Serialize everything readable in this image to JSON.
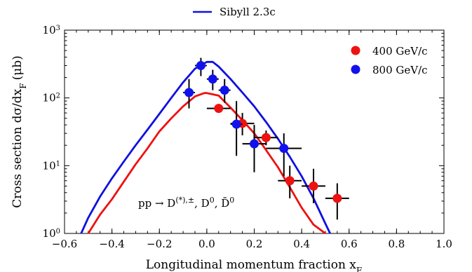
{
  "chart_data": {
    "type": "scatter",
    "xlabel": "Longitudinal momentum fraction x",
    "xlabel_sub": "F",
    "ylabel": "Cross section dσ/dx",
    "ylabel_sub": "F",
    "ylabel_unit": "(μb)",
    "yscale": "log",
    "xlim": [
      -0.6,
      1.0
    ],
    "ylim": [
      1,
      1000
    ],
    "x_ticks": [
      -0.6,
      -0.4,
      -0.2,
      0.0,
      0.2,
      0.4,
      0.6,
      0.8,
      1.0
    ],
    "x_tick_labels": [
      "−0.6",
      "−0.4",
      "−0.2",
      "0.0",
      "0.2",
      "0.4",
      "0.6",
      "0.8",
      "1.0"
    ],
    "y_ticks": [
      1,
      10,
      100,
      1000
    ],
    "y_tick_labels": [
      {
        "base": "10",
        "exp": "0"
      },
      {
        "base": "10",
        "exp": "1"
      },
      {
        "base": "10",
        "exp": "2"
      },
      {
        "base": "10",
        "exp": "3"
      }
    ],
    "annotation": {
      "lead": "pp → D",
      "sup": "(*),±",
      "mid": ", D",
      "sup2": "0",
      "tail": ", D̄",
      "sup3": "0"
    },
    "legend_top": {
      "name": "Sibyll 2.3c",
      "color": "#1010e0"
    },
    "legend_right": [
      {
        "name": "400 GeV/c",
        "color": "#ee1111"
      },
      {
        "name": "800 GeV/c",
        "color": "#1111ee"
      }
    ],
    "model_curves": [
      {
        "name": "Sibyll 2.3c",
        "color": "#1010e0",
        "x": [
          -0.53,
          -0.5,
          -0.45,
          -0.4,
          -0.35,
          -0.3,
          -0.25,
          -0.2,
          -0.15,
          -0.1,
          -0.05,
          0.0,
          0.025,
          0.05,
          0.1,
          0.15,
          0.2,
          0.25,
          0.3,
          0.35,
          0.4,
          0.45,
          0.5,
          0.52
        ],
        "y": [
          1.0,
          1.7,
          3.5,
          6.5,
          11.5,
          20,
          34,
          58,
          100,
          170,
          270,
          340,
          340,
          290,
          190,
          120,
          75,
          44,
          25,
          13.5,
          7,
          3.3,
          1.4,
          1.0
        ]
      },
      {
        "name": "400 GeV/c model",
        "color": "#ee1111",
        "x": [
          -0.5,
          -0.45,
          -0.4,
          -0.35,
          -0.3,
          -0.25,
          -0.2,
          -0.15,
          -0.1,
          -0.05,
          -0.01,
          0.0,
          0.05,
          0.1,
          0.15,
          0.2,
          0.25,
          0.3,
          0.35,
          0.4,
          0.45,
          0.5
        ],
        "y": [
          1.0,
          1.9,
          3.2,
          5.8,
          10.5,
          18,
          32,
          50,
          75,
          105,
          118,
          118,
          108,
          72,
          47,
          30,
          17,
          9.5,
          4.8,
          2.4,
          1.35,
          1.0
        ]
      }
    ],
    "series": [
      {
        "name": "400 GeV/c",
        "color": "#ee1111",
        "points": [
          {
            "x": 0.05,
            "y": 70,
            "xerr": 0.05,
            "ylo": 70,
            "yhi": 70
          },
          {
            "x": 0.15,
            "y": 42,
            "xerr": 0.05,
            "ylo": 28,
            "yhi": 60
          },
          {
            "x": 0.25,
            "y": 26,
            "xerr": 0.05,
            "ylo": 20,
            "yhi": 33
          },
          {
            "x": 0.35,
            "y": 6,
            "xerr": 0.05,
            "ylo": 3.3,
            "yhi": 10
          },
          {
            "x": 0.45,
            "y": 5,
            "xerr": 0.05,
            "ylo": 2.8,
            "yhi": 9
          },
          {
            "x": 0.55,
            "y": 3.3,
            "xerr": 0.05,
            "ylo": 1.6,
            "yhi": 5.5
          }
        ]
      },
      {
        "name": "800 GeV/c",
        "color": "#1111ee",
        "points": [
          {
            "x": -0.075,
            "y": 120,
            "xerr": 0.025,
            "ylo": 70,
            "yhi": 190
          },
          {
            "x": -0.025,
            "y": 300,
            "xerr": 0.025,
            "ylo": 210,
            "yhi": 390
          },
          {
            "x": 0.025,
            "y": 190,
            "xerr": 0.025,
            "ylo": 130,
            "yhi": 260
          },
          {
            "x": 0.075,
            "y": 130,
            "xerr": 0.025,
            "ylo": 85,
            "yhi": 190
          },
          {
            "x": 0.125,
            "y": 41,
            "xerr": 0.025,
            "ylo": 14,
            "yhi": 90
          },
          {
            "x": 0.2,
            "y": 21,
            "xerr": 0.05,
            "ylo": 8,
            "yhi": 40
          },
          {
            "x": 0.325,
            "y": 18,
            "xerr": 0.075,
            "ylo": 7,
            "yhi": 30
          }
        ]
      }
    ]
  }
}
